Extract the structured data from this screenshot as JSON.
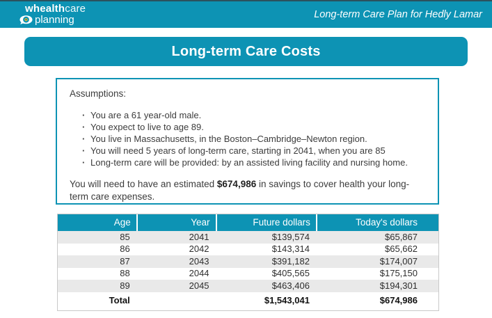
{
  "brand": {
    "name_part_bold": "whealth",
    "name_part_light": "care",
    "line2": "planning",
    "logo_icon": "eye-coin-icon"
  },
  "header": {
    "subtitle": "Long-term Care Plan for Hedly Lamar"
  },
  "banner": {
    "title": "Long-term Care Costs"
  },
  "assumptions": {
    "heading": "Assumptions:",
    "bullets": [
      "You are a 61 year-old male.",
      "You expect to live to age 89.",
      "You live in Massachusetts, in the Boston–Cambridge–Newton region.",
      "You will need 5 years of long-term care, starting in 2041, when you are 85",
      "Long-term care will be provided: by an assisted living facility and nursing home."
    ],
    "summary_prefix": "You will need to have an estimated ",
    "summary_amount": "$674,986",
    "summary_suffix": " in savings to cover health your long-term care expenses."
  },
  "table": {
    "columns": [
      "Age",
      "Year",
      "Future dollars",
      "Today's dollars"
    ],
    "rows": [
      [
        "85",
        "2041",
        "$139,574",
        "$65,867"
      ],
      [
        "86",
        "2042",
        "$143,314",
        "$65,662"
      ],
      [
        "87",
        "2043",
        "$391,182",
        "$174,007"
      ],
      [
        "88",
        "2044",
        "$405,565",
        "$175,150"
      ],
      [
        "89",
        "2045",
        "$463,406",
        "$194,301"
      ]
    ],
    "total": {
      "label": "Total",
      "year": "",
      "future": "$1,543,041",
      "today": "$674,986"
    }
  },
  "colors": {
    "teal": "#0d93b4",
    "teal_dark_edge": "#2b515d",
    "row_alt": "#e9e9e9",
    "text": "#3c3c3c"
  }
}
